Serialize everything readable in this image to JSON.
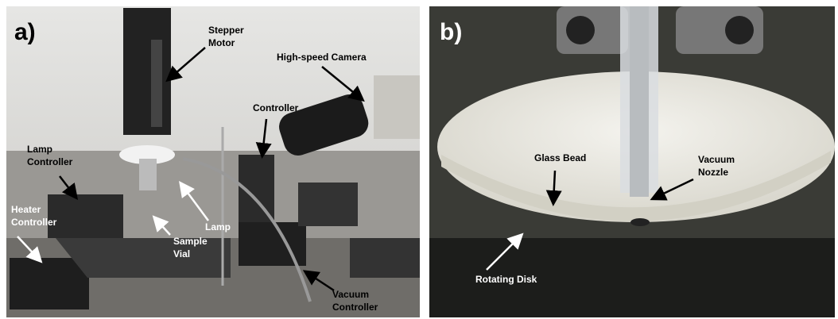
{
  "panels": [
    {
      "label": "a)",
      "annotations": [
        {
          "lines": [
            "Stepper",
            "Motor"
          ]
        },
        {
          "lines": [
            "High-speed Camera"
          ]
        },
        {
          "lines": [
            "Controller"
          ]
        },
        {
          "lines": [
            "Lamp",
            "Controller"
          ]
        },
        {
          "lines": [
            "Heater",
            "Controller"
          ]
        },
        {
          "lines": [
            "Lamp"
          ]
        },
        {
          "lines": [
            "Sample",
            "Vial"
          ]
        },
        {
          "lines": [
            "Vacuum",
            "Controller"
          ]
        }
      ]
    },
    {
      "label": "b)",
      "annotations": [
        {
          "lines": [
            "Glass Bead"
          ]
        },
        {
          "lines": [
            "Vacuum",
            "Nozzle"
          ]
        },
        {
          "lines": [
            "Rotating Disk"
          ]
        }
      ]
    }
  ]
}
